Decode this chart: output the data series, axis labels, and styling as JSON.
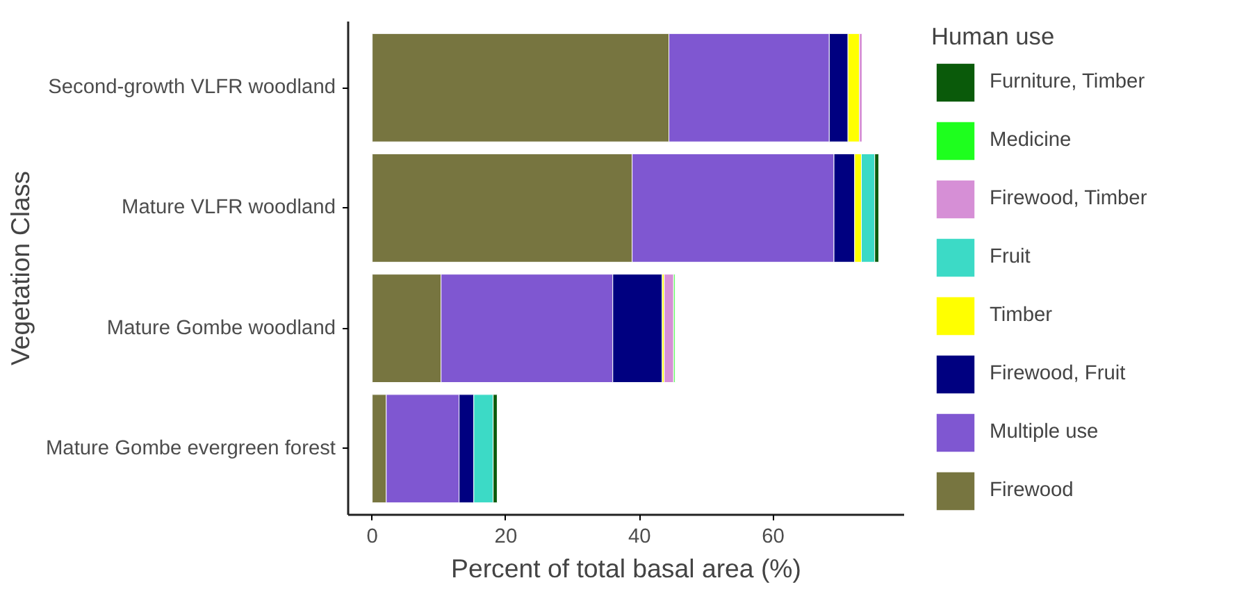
{
  "chart_data": {
    "type": "bar",
    "orientation": "horizontal",
    "stacked": true,
    "xlabel": "Percent of total basal area (%)",
    "ylabel": "Vegetation Class",
    "legend_title": "Human use",
    "legend": "right",
    "grid": false,
    "categories": [
      "Second-growth VLFR woodland",
      "Mature VLFR woodland",
      "Mature Gombe woodland",
      "Mature Gombe evergreen forest"
    ],
    "xlim": [
      -3.6,
      79.6
    ],
    "xticks": [
      0,
      20,
      40,
      60
    ],
    "series": [
      {
        "name": "Firewood",
        "color": "#777540",
        "values": [
          44.4,
          38.9,
          10.3,
          2.1
        ]
      },
      {
        "name": "Multiple use",
        "color": "#7f57d1",
        "values": [
          24.0,
          30.2,
          25.7,
          10.9
        ]
      },
      {
        "name": "Firewood, Fruit",
        "color": "#000080",
        "values": [
          2.8,
          3.1,
          7.4,
          2.2
        ]
      },
      {
        "name": "Timber",
        "color": "#ffff00",
        "values": [
          1.7,
          1.0,
          0.3,
          null
        ]
      },
      {
        "name": "Fruit",
        "color": "#3cdac6",
        "values": [
          null,
          2.0,
          null,
          2.9
        ]
      },
      {
        "name": "Firewood, Timber",
        "color": "#d68fd6",
        "values": [
          0.4,
          null,
          1.4,
          null
        ]
      },
      {
        "name": "Medicine",
        "color": "#1eff1e",
        "values": [
          null,
          null,
          0.2,
          null
        ]
      },
      {
        "name": "Furniture, Timber",
        "color": "#0a5a0a",
        "values": [
          null,
          0.6,
          null,
          0.6
        ]
      }
    ]
  }
}
